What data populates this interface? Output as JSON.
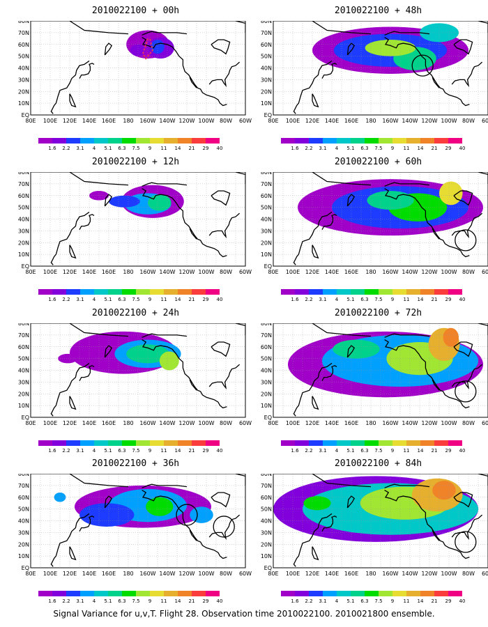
{
  "panels": [
    {
      "title": "2010022100 + 00h",
      "hour": 0
    },
    {
      "title": "2010022100 + 48h",
      "hour": 48
    },
    {
      "title": "2010022100 + 12h",
      "hour": 12
    },
    {
      "title": "2010022100 + 60h",
      "hour": 60
    },
    {
      "title": "2010022100 + 24h",
      "hour": 24
    },
    {
      "title": "2010022100 + 72h",
      "hour": 72
    },
    {
      "title": "2010022100 + 36h",
      "hour": 36
    },
    {
      "title": "2010022100 + 84h",
      "hour": 84
    }
  ],
  "lat_labels": [
    "80N",
    "70N",
    "60N",
    "50N",
    "40N",
    "30N",
    "20N",
    "10N",
    "EQ"
  ],
  "lon_labels": [
    "80E",
    "100E",
    "120E",
    "140E",
    "160E",
    "180",
    "160W",
    "140W",
    "120W",
    "100W",
    "80W",
    "60W"
  ],
  "colorbar": {
    "levels": [
      "1.6",
      "2.2",
      "3.1",
      "4",
      "5.1",
      "6.3",
      "7.5",
      "9",
      "11",
      "14",
      "21",
      "29",
      "40"
    ],
    "colors": [
      "#a000c8",
      "#8200dc",
      "#1e3cff",
      "#00a0ff",
      "#00c8c8",
      "#00d28c",
      "#00dc00",
      "#a0e632",
      "#e6dc32",
      "#e6af2d",
      "#f08228",
      "#fa3c3c",
      "#f00082"
    ]
  },
  "footer": "Signal Variance for u,v,T. Flight 28. Observation time 2010022100. 2010021800 ensemble."
}
